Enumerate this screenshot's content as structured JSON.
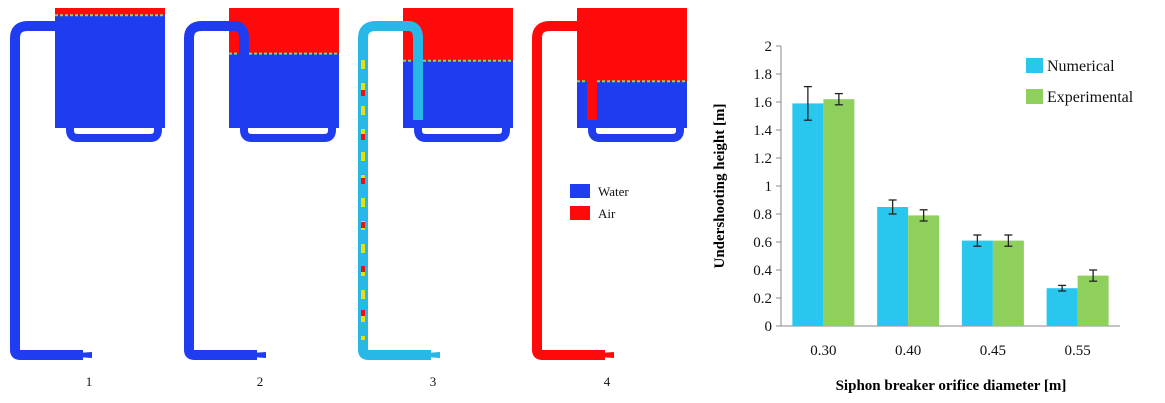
{
  "panels": [
    {
      "label": "1",
      "water_fraction": 0.94
    },
    {
      "label": "2",
      "water_fraction": 0.62
    },
    {
      "label": "3",
      "water_fraction": 0.56
    },
    {
      "label": "4",
      "water_fraction": 0.39
    }
  ],
  "phase_legend": [
    {
      "label": "Water",
      "color": "#1f3cf0"
    },
    {
      "label": "Air",
      "color": "#ff0a0a"
    }
  ],
  "chart_data": {
    "type": "bar",
    "categories": [
      "0.30",
      "0.40",
      "0.45",
      "0.55"
    ],
    "series": [
      {
        "name": "Numerical",
        "color": "#29c6ee",
        "values": [
          1.59,
          0.85,
          0.61,
          0.27
        ],
        "errors": [
          0.12,
          0.05,
          0.04,
          0.02
        ]
      },
      {
        "name": "Experimental",
        "color": "#8fcf5c",
        "values": [
          1.62,
          0.79,
          0.61,
          0.36
        ],
        "errors": [
          0.04,
          0.04,
          0.04,
          0.04
        ]
      }
    ],
    "xlabel": "Siphon breaker orifice diameter [m]",
    "ylabel": "Undershooting height [m]",
    "ylim": [
      0,
      2
    ],
    "yticks": [
      "0",
      "0.2",
      "0.4",
      "0.6",
      "0.8",
      "1",
      "1.2",
      "1.4",
      "1.6",
      "1.8",
      "2"
    ],
    "grid": false,
    "legend_position": "top-right"
  }
}
